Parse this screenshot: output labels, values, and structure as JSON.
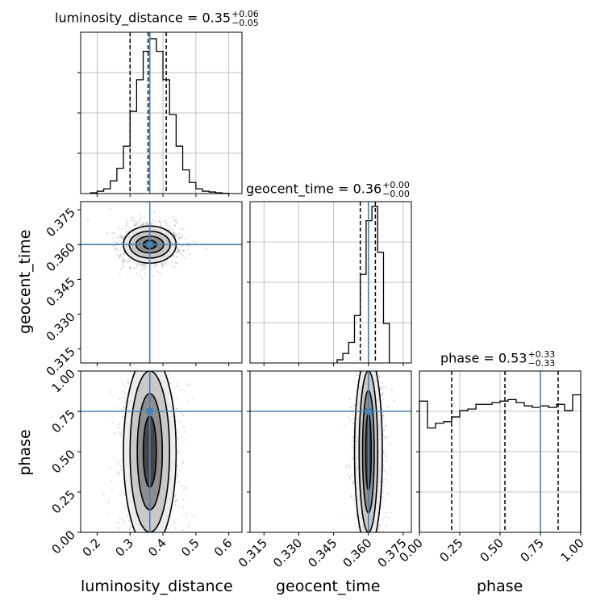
{
  "chart_data": {
    "type": "corner",
    "parameters": [
      "luminosity_distance",
      "geocent_time",
      "phase"
    ],
    "truth": {
      "luminosity_distance": 0.36,
      "geocent_time": 0.36,
      "phase": 0.75
    },
    "truth_color": "#4682b4",
    "grid": true,
    "titles": [
      {
        "name": "luminosity_distance",
        "label": "luminosity_distance = 0.35",
        "plus": "+0.06",
        "minus": "−0.05"
      },
      {
        "name": "geocent_time",
        "label": "geocent_time = 0.36",
        "plus": "+0.00",
        "minus": "−0.00"
      },
      {
        "name": "phase",
        "label": "phase = 0.53",
        "plus": "+0.33",
        "minus": "−0.33"
      }
    ],
    "axes": {
      "luminosity_distance": {
        "range": [
          0.15,
          0.64
        ],
        "ticks": [
          "0.2",
          "0.3",
          "0.4",
          "0.5",
          "0.6"
        ],
        "tick_values": [
          0.2,
          0.3,
          0.4,
          0.5,
          0.6
        ]
      },
      "geocent_time": {
        "range": [
          0.309,
          0.3785
        ],
        "ticks": [
          "0.315",
          "0.330",
          "0.345",
          "0.360",
          "0.375"
        ],
        "tick_values": [
          0.315,
          0.33,
          0.345,
          0.36,
          0.375
        ]
      },
      "phase": {
        "range": [
          0.0,
          1.0
        ],
        "ticks": [
          "0.00",
          "0.25",
          "0.50",
          "0.75",
          "1.00"
        ],
        "tick_values": [
          0.0,
          0.25,
          0.5,
          0.75,
          1.0
        ]
      }
    },
    "histograms": {
      "luminosity_distance": {
        "bin_edges": [
          0.18,
          0.2,
          0.22,
          0.24,
          0.26,
          0.28,
          0.3,
          0.32,
          0.34,
          0.36,
          0.38,
          0.4,
          0.42,
          0.44,
          0.46,
          0.48,
          0.5,
          0.52,
          0.54,
          0.56,
          0.58,
          0.6
        ],
        "counts": [
          0.005,
          0.015,
          0.03,
          0.08,
          0.16,
          0.3,
          0.52,
          0.72,
          0.9,
          0.98,
          0.9,
          0.72,
          0.5,
          0.3,
          0.15,
          0.07,
          0.03,
          0.015,
          0.01,
          0.005,
          0.002
        ],
        "quantiles": [
          0.3,
          0.355,
          0.41
        ]
      },
      "geocent_time": {
        "bin_edges": [
          0.3465,
          0.349,
          0.3515,
          0.354,
          0.3565,
          0.359,
          0.3615,
          0.364,
          0.3665,
          0.369
        ],
        "counts": [
          0.02,
          0.06,
          0.13,
          0.3,
          0.56,
          0.9,
          0.99,
          0.7,
          0.25
        ],
        "quantiles": [
          0.3565,
          0.36,
          0.363
        ]
      },
      "phase": {
        "bin_edges": [
          0.0,
          0.05,
          0.1,
          0.15,
          0.2,
          0.25,
          0.3,
          0.35,
          0.4,
          0.45,
          0.5,
          0.55,
          0.6,
          0.65,
          0.7,
          0.75,
          0.8,
          0.85,
          0.9,
          0.95,
          1.0
        ],
        "counts": [
          0.83,
          0.66,
          0.69,
          0.7,
          0.73,
          0.77,
          0.78,
          0.81,
          0.81,
          0.82,
          0.83,
          0.84,
          0.82,
          0.8,
          0.79,
          0.8,
          0.79,
          0.81,
          0.77,
          0.87
        ],
        "quantiles": [
          0.2,
          0.53,
          0.86
        ]
      }
    },
    "contours_2d": [
      {
        "x": "luminosity_distance",
        "y": "geocent_time",
        "center": [
          0.36,
          0.36
        ],
        "x_radii": [
          0.02,
          0.042,
          0.062,
          0.08
        ],
        "y_radii": [
          0.0018,
          0.0036,
          0.0058,
          0.008
        ]
      },
      {
        "x": "luminosity_distance",
        "y": "phase",
        "center": [
          0.36,
          0.5
        ],
        "x_radii": [
          0.02,
          0.038,
          0.06,
          0.08
        ],
        "y_radii": [
          0.22,
          0.36,
          0.5,
          0.6
        ]
      },
      {
        "x": "geocent_time",
        "y": "phase",
        "center": [
          0.36,
          0.5
        ],
        "x_radii": [
          0.0012,
          0.0025,
          0.004,
          0.006
        ],
        "y_radii": [
          0.24,
          0.38,
          0.5,
          0.6
        ]
      }
    ]
  }
}
